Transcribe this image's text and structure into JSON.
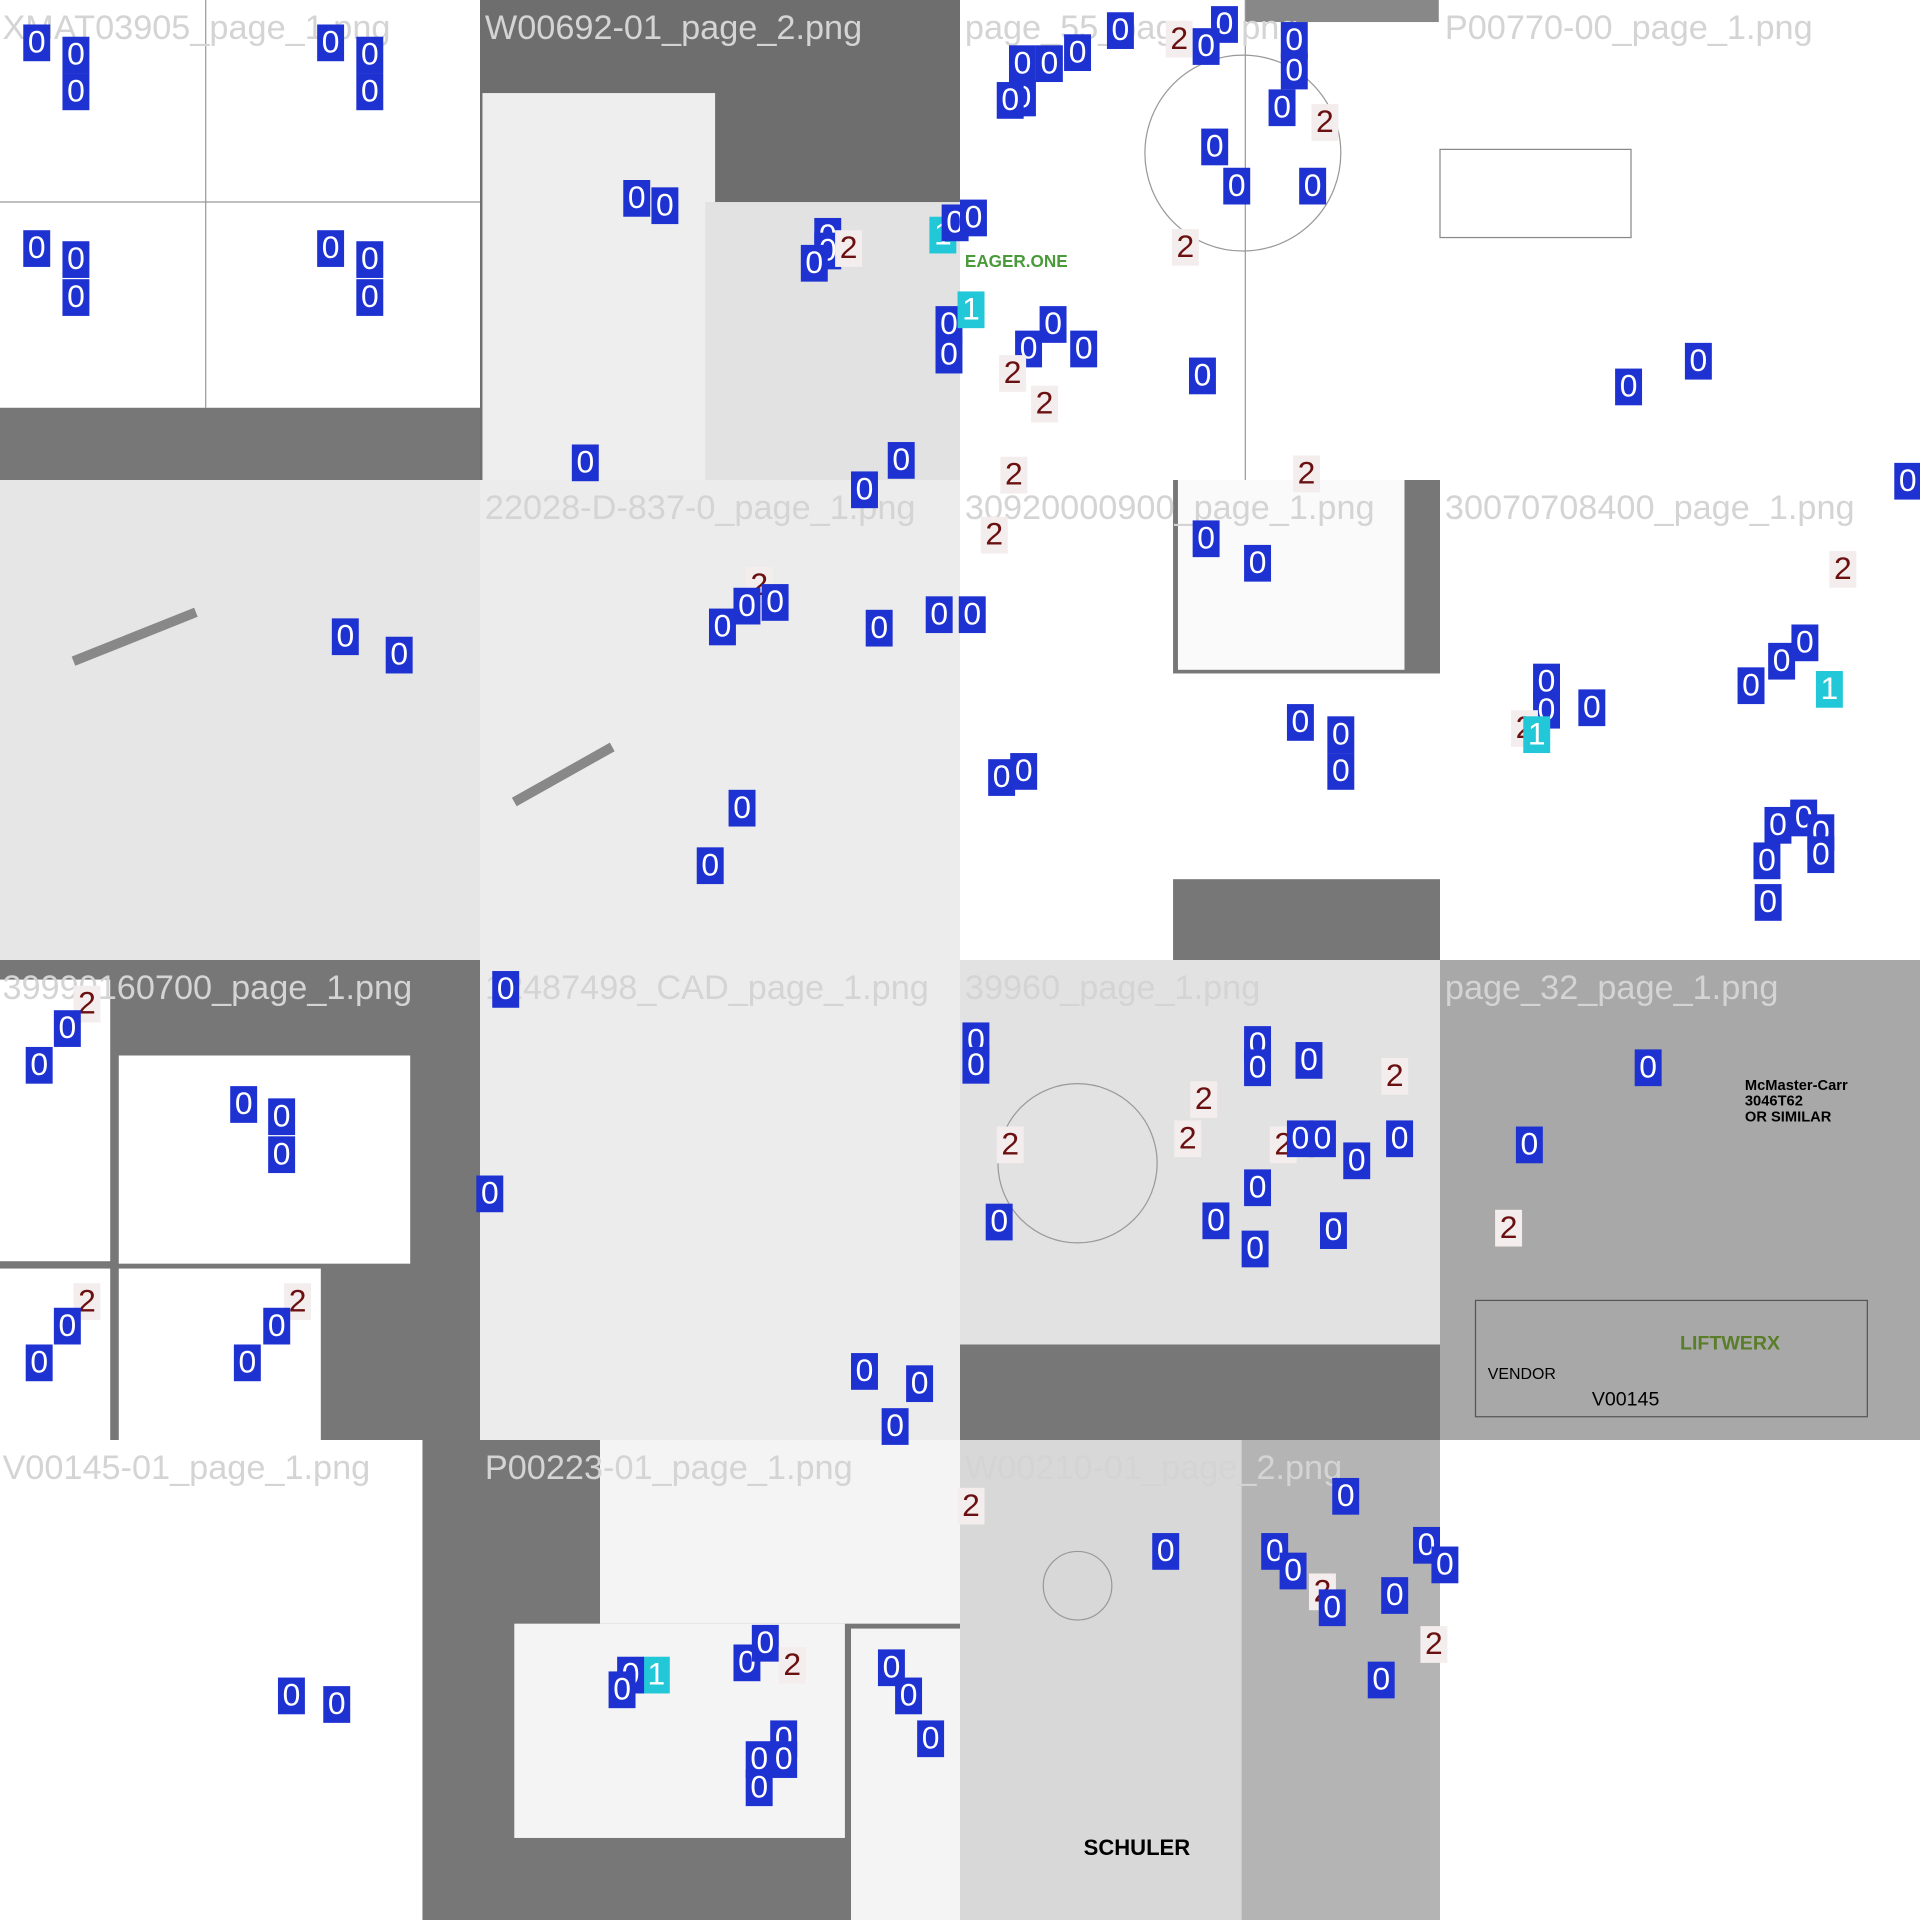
{
  "mosaic": {
    "filenames": [
      "XMAT03905_page_1.png",
      "W00692-01_page_2.png",
      "page_55_page_1.png",
      "P00770-00_page_1.png",
      "22028-D-837-0_page_1.png",
      "30920000900_page_1.png",
      "30070708400_page_1.png",
      "39990160700_page_1.png",
      "12487498_CAD_page_1.png",
      "39960_page_1.png",
      "page_32_page_1.png",
      "V00145-01_page_1.png",
      "P00223-01_page_1.png",
      "W00210-01_page_2.png"
    ],
    "sheet_texts": [
      "McMaster-Carr",
      "3046T62",
      "OR SIMILAR",
      "LIFTWERX",
      "VENDOR",
      "V00145",
      "SCHULER",
      "EAGER.ONE"
    ],
    "labels": [
      "0",
      "0",
      "0",
      "0",
      "0",
      "0",
      "0",
      "0",
      "0",
      "0",
      "0",
      "0",
      "0",
      "0",
      "0",
      "0",
      "0",
      "2",
      "1",
      "0",
      "0",
      "0",
      "0",
      "0",
      "0",
      "0",
      "0",
      "0",
      "2",
      "0",
      "0",
      "0",
      "0",
      "0",
      "0",
      "0",
      "0",
      "2",
      "1",
      "0",
      "0",
      "0",
      "2",
      "2",
      "0",
      "2",
      "0",
      "0",
      "0",
      "2",
      "0",
      "2",
      "0",
      "0",
      "0",
      "2",
      "0",
      "0",
      "2",
      "0",
      "0",
      "0",
      "0",
      "0",
      "0",
      "0",
      "2",
      "0",
      "0",
      "0",
      "0",
      "0",
      "0",
      "0",
      "0",
      "0",
      "0",
      "0",
      "0",
      "2",
      "1",
      "0",
      "0",
      "1",
      "0",
      "0",
      "0",
      "0",
      "0",
      "0",
      "2",
      "0",
      "0",
      "0",
      "0",
      "0",
      "2",
      "0",
      "0",
      "2",
      "0",
      "0",
      "0",
      "0",
      "0",
      "0",
      "0",
      "0",
      "0",
      "0",
      "0",
      "0",
      "2",
      "2",
      "2",
      "2",
      "2",
      "0",
      "0",
      "0",
      "0",
      "0",
      "0",
      "0",
      "0",
      "0",
      "0",
      "0",
      "2",
      "0",
      "0",
      "1",
      "0",
      "0",
      "0",
      "0",
      "2",
      "0",
      "0",
      "0",
      "0",
      "0",
      "0",
      "0",
      "2",
      "0",
      "0",
      "0",
      "0",
      "2",
      "0",
      "0",
      "0",
      "0",
      "2",
      "0"
    ]
  }
}
